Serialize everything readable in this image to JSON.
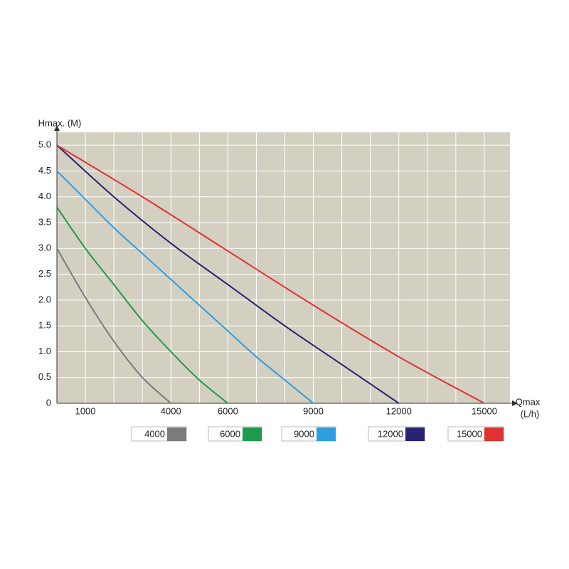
{
  "chart_data": {
    "type": "line",
    "y_label": "Hmax. (M)",
    "x_label": [
      "Qmax",
      "(L/h)"
    ],
    "xlim": [
      0,
      16000
    ],
    "ylim": [
      0,
      5.25
    ],
    "xticks": [
      {
        "value": 1000,
        "label": "1000"
      },
      {
        "value": 2000,
        "label": null
      },
      {
        "value": 3000,
        "label": null
      },
      {
        "value": 4000,
        "label": "4000"
      },
      {
        "value": 5000,
        "label": null
      },
      {
        "value": 6000,
        "label": "6000"
      },
      {
        "value": 7000,
        "label": null
      },
      {
        "value": 8000,
        "label": null
      },
      {
        "value": 9000,
        "label": "9000"
      },
      {
        "value": 10000,
        "label": null
      },
      {
        "value": 11000,
        "label": null
      },
      {
        "value": 12000,
        "label": "12000"
      },
      {
        "value": 13000,
        "label": null
      },
      {
        "value": 14000,
        "label": null
      },
      {
        "value": 15000,
        "label": "15000"
      }
    ],
    "yticks": [
      0,
      0.5,
      {
        "value": 1,
        "label": "1.0"
      },
      1.5,
      {
        "value": 2,
        "label": "2.0"
      },
      2.5,
      {
        "value": 3,
        "label": "3.0"
      },
      3.5,
      {
        "value": 4,
        "label": "4.0"
      },
      4.5,
      {
        "value": 5,
        "label": "5.0"
      }
    ],
    "grid": true,
    "series": [
      {
        "name": "4000",
        "color": "#7b7b7b",
        "x": [
          0,
          1000,
          2000,
          3000,
          4000
        ],
        "values": [
          3.0,
          2.05,
          1.2,
          0.5,
          0
        ]
      },
      {
        "name": "6000",
        "color": "#1e9a4c",
        "x": [
          0,
          1000,
          2000,
          3000,
          4000,
          5000,
          6000
        ],
        "values": [
          3.8,
          3.0,
          2.3,
          1.6,
          1.0,
          0.45,
          0
        ]
      },
      {
        "name": "9000",
        "color": "#2d9fe0",
        "x": [
          0,
          1000,
          2000,
          3000,
          4000,
          5000,
          6000,
          7000,
          8000,
          9000
        ],
        "values": [
          4.5,
          3.95,
          3.4,
          2.9,
          2.4,
          1.9,
          1.4,
          0.9,
          0.45,
          0
        ]
      },
      {
        "name": "12000",
        "color": "#2a2272",
        "x": [
          0,
          2000,
          4000,
          6000,
          8000,
          10000,
          12000
        ],
        "values": [
          5.0,
          4.0,
          3.1,
          2.3,
          1.5,
          0.75,
          0
        ]
      },
      {
        "name": "15000",
        "color": "#e03232",
        "x": [
          0,
          3000,
          6000,
          9000,
          12000,
          15000
        ],
        "values": [
          5.0,
          4.0,
          2.95,
          1.9,
          0.9,
          0
        ]
      }
    ]
  }
}
